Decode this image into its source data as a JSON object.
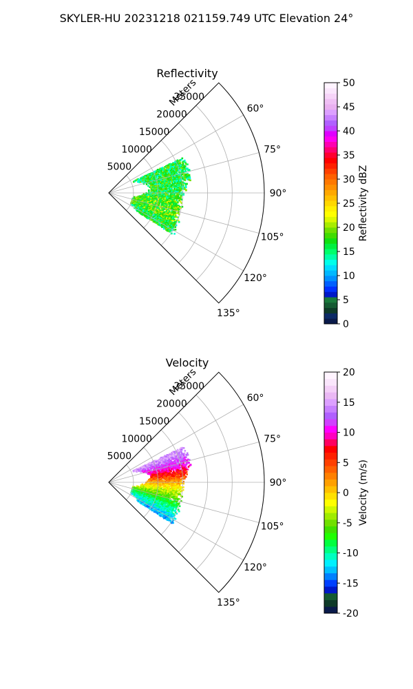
{
  "figure": {
    "suptitle": "SKYLER-HU  20231218  021159.749 UTC Elevation 24°"
  },
  "chart_data": [
    {
      "type": "polar-sector",
      "title": "Reflectivity",
      "range_axis_label": "Meters",
      "range_ticks": [
        5000,
        10000,
        15000,
        20000,
        25000
      ],
      "range_tick_labels": [
        "5000",
        "10000",
        "15000",
        "20000",
        "25000"
      ],
      "rmax": 31500,
      "azimuth_ticks": [
        60,
        75,
        90,
        105,
        120,
        135
      ],
      "azimuth_tick_labels": [
        "60°",
        "75°",
        "90°",
        "105°",
        "120°",
        "135°"
      ],
      "azimuth_range": [
        45,
        135
      ],
      "grid": true,
      "echo_range_m": [
        5000,
        17000
      ],
      "echo_azimuth_deg": [
        65,
        123
      ],
      "colorbar": {
        "label": "Reflectivity dBZ",
        "vmin": 0,
        "vmax": 50,
        "ticks": [
          0,
          5,
          10,
          15,
          20,
          25,
          30,
          35,
          40,
          45,
          50
        ],
        "tick_labels": [
          "0",
          "5",
          "10",
          "15",
          "20",
          "25",
          "30",
          "35",
          "40",
          "45",
          "50"
        ],
        "colors": [
          "#0a1a4a",
          "#0c2a66",
          "#0e3a28",
          "#155a32",
          "#1a7a3c",
          "#0018c8",
          "#0030ff",
          "#0060ff",
          "#0090ff",
          "#00b8ff",
          "#00dcff",
          "#00ffea",
          "#00ffa8",
          "#00ff6a",
          "#00f040",
          "#10e010",
          "#40dc00",
          "#70e000",
          "#a8ec00",
          "#dcf800",
          "#ffff00",
          "#fff000",
          "#ffd800",
          "#ffc000",
          "#ffa800",
          "#ff9000",
          "#ff7800",
          "#ff6000",
          "#ff4000",
          "#ff2000",
          "#ff0000",
          "#ff0030",
          "#ff0070",
          "#ff00b0",
          "#ff00f0",
          "#e000ff",
          "#c040ff",
          "#b060ff",
          "#c880ff",
          "#dca0ff",
          "#eab0f0",
          "#f0c0f4",
          "#f6d4f8",
          "#fae6fc",
          "#fff4ff"
        ]
      }
    },
    {
      "type": "polar-sector",
      "title": "Velocity",
      "range_axis_label": "Meters",
      "range_ticks": [
        5000,
        10000,
        15000,
        20000,
        25000
      ],
      "range_tick_labels": [
        "5000",
        "10000",
        "15000",
        "20000",
        "25000"
      ],
      "rmax": 31500,
      "azimuth_ticks": [
        60,
        75,
        90,
        105,
        120,
        135
      ],
      "azimuth_tick_labels": [
        "60°",
        "75°",
        "90°",
        "105°",
        "120°",
        "135°"
      ],
      "azimuth_range": [
        45,
        135
      ],
      "grid": true,
      "echo_range_m": [
        5000,
        17000
      ],
      "echo_azimuth_deg": [
        65,
        123
      ],
      "velocity_by_azimuth_deg": [
        [
          68,
          15
        ],
        [
          78,
          10
        ],
        [
          88,
          3
        ],
        [
          98,
          -3
        ],
        [
          110,
          -9
        ],
        [
          122,
          -13
        ]
      ],
      "colorbar": {
        "label": "Velocity (m/s)",
        "vmin": -20,
        "vmax": 20,
        "ticks": [
          -20,
          -15,
          -10,
          -5,
          0,
          5,
          10,
          15,
          20
        ],
        "tick_labels": [
          "-20",
          "-15",
          "-10",
          "-5",
          "0",
          "5",
          "10",
          "15",
          "20"
        ],
        "colors": [
          "#0a1a4a",
          "#0e3a28",
          "#155a32",
          "#0018c8",
          "#0040ff",
          "#0080ff",
          "#00c0ff",
          "#00f0ff",
          "#00ffc0",
          "#00ff80",
          "#00ff40",
          "#20ff00",
          "#40e000",
          "#70e000",
          "#a0ec00",
          "#d0f800",
          "#ffff00",
          "#ffe000",
          "#ffc000",
          "#ffa000",
          "#ff8000",
          "#ff6000",
          "#ff4000",
          "#ff2000",
          "#ff0000",
          "#ff0060",
          "#ff00c0",
          "#ff00ff",
          "#d040ff",
          "#b060ff",
          "#c880ff",
          "#dca0ff",
          "#eab8f4",
          "#f4d0f8",
          "#fae6fc",
          "#fff4ff"
        ]
      }
    }
  ]
}
